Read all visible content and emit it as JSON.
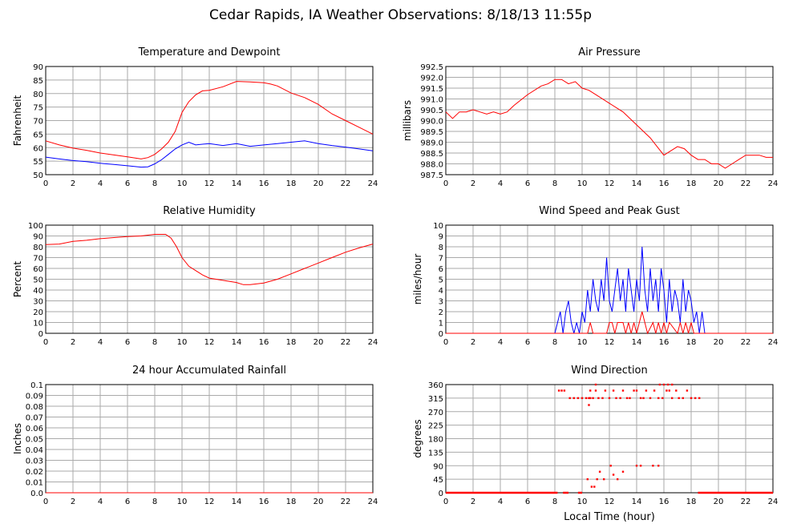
{
  "title": "Cedar Rapids, IA Weather Observations: 8/18/13 11:55p",
  "xlabel_bottom": "Local Time (hour)",
  "x_ticks": [
    0,
    2,
    4,
    6,
    8,
    10,
    12,
    14,
    16,
    18,
    20,
    22,
    24
  ],
  "colors": {
    "red": "#ff0000",
    "blue": "#0000ff",
    "grid": "#aaaaaa",
    "axis": "#000000"
  },
  "chart_data": [
    {
      "id": "temp",
      "type": "line",
      "title": "Temperature and Dewpoint",
      "ylabel": "Fahrenheit",
      "xlim": [
        0,
        24
      ],
      "ylim": [
        50,
        90
      ],
      "y_ticks": [
        50,
        55,
        60,
        65,
        70,
        75,
        80,
        85,
        90
      ],
      "y_tick_labels": [
        "50",
        "55",
        "60",
        "65",
        "70",
        "75",
        "80",
        "85",
        "90"
      ],
      "grid": true,
      "series": [
        {
          "color": "#ff0000",
          "x": [
            0,
            1,
            2,
            3,
            4,
            5,
            6,
            7,
            7.5,
            8,
            8.5,
            9,
            9.5,
            10,
            10.5,
            11,
            11.5,
            12,
            13,
            14,
            15,
            16,
            16.5,
            17,
            18,
            19,
            20,
            21,
            22,
            23,
            24
          ],
          "y": [
            62.5,
            61,
            59.8,
            59,
            58,
            57.3,
            56.6,
            55.8,
            56.3,
            57.5,
            59.5,
            62,
            66,
            73,
            77,
            79.5,
            81,
            81.2,
            82.5,
            84.5,
            84.3,
            84,
            83.5,
            82.8,
            80.2,
            78.5,
            76,
            72.5,
            70,
            67.5,
            65
          ]
        },
        {
          "color": "#0000ff",
          "x": [
            0,
            1,
            2,
            3,
            4,
            5,
            6,
            7,
            7.5,
            8,
            8.5,
            9,
            9.5,
            10,
            10.5,
            11,
            12,
            13,
            14,
            15,
            16,
            17,
            18,
            19,
            20,
            21,
            22,
            23,
            24
          ],
          "y": [
            56.5,
            55.8,
            55.2,
            54.8,
            54.2,
            53.8,
            53.3,
            52.8,
            52.9,
            54,
            55.5,
            57.5,
            59.5,
            61,
            62,
            61,
            61.5,
            60.8,
            61.5,
            60.5,
            61,
            61.5,
            62,
            62.5,
            61.5,
            60.8,
            60.2,
            59.5,
            58.8
          ]
        }
      ]
    },
    {
      "id": "pressure",
      "type": "line",
      "title": "Air Pressure",
      "ylabel": "millibars",
      "xlim": [
        0,
        24
      ],
      "ylim": [
        987.5,
        992.5
      ],
      "y_ticks": [
        987.5,
        988.0,
        988.5,
        989.0,
        989.5,
        990.0,
        990.5,
        991.0,
        991.5,
        992.0,
        992.5
      ],
      "y_tick_labels": [
        "987.5",
        "988.0",
        "988.5",
        "989.0",
        "989.5",
        "990.0",
        "990.5",
        "991.0",
        "991.5",
        "992.0",
        "992.5"
      ],
      "grid": true,
      "series": [
        {
          "color": "#ff0000",
          "x": [
            0,
            0.5,
            1,
            1.5,
            2,
            2.5,
            3,
            3.5,
            4,
            4.5,
            5,
            6,
            7,
            7.5,
            8,
            8.5,
            9,
            9.5,
            10,
            10.5,
            11,
            12,
            13,
            14,
            15,
            15.5,
            16,
            16.5,
            17,
            17.5,
            18,
            18.5,
            19,
            19.5,
            20,
            20.5,
            21,
            21.5,
            22,
            22.5,
            23,
            23.5,
            24
          ],
          "y": [
            990.4,
            990.1,
            990.4,
            990.4,
            990.5,
            990.4,
            990.3,
            990.4,
            990.3,
            990.4,
            990.7,
            991.2,
            991.6,
            991.7,
            991.9,
            991.9,
            991.7,
            991.8,
            991.5,
            991.4,
            991.2,
            990.8,
            990.4,
            989.8,
            989.2,
            988.8,
            988.4,
            988.6,
            988.8,
            988.7,
            988.4,
            988.2,
            988.2,
            988.0,
            988.0,
            987.8,
            988.0,
            988.2,
            988.4,
            988.4,
            988.4,
            988.3,
            988.3
          ]
        }
      ]
    },
    {
      "id": "rh",
      "type": "line",
      "title": "Relative Humidity",
      "ylabel": "Percent",
      "xlim": [
        0,
        24
      ],
      "ylim": [
        0,
        100
      ],
      "y_ticks": [
        0,
        10,
        20,
        30,
        40,
        50,
        60,
        70,
        80,
        90,
        100
      ],
      "y_tick_labels": [
        "0",
        "10",
        "20",
        "30",
        "40",
        "50",
        "60",
        "70",
        "80",
        "90",
        "100"
      ],
      "grid": true,
      "series": [
        {
          "color": "#ff0000",
          "x": [
            0,
            1,
            2,
            3,
            4,
            5,
            6,
            7,
            8,
            8.8,
            9.2,
            9.6,
            10,
            10.5,
            11,
            11.5,
            12,
            13,
            14,
            14.5,
            15,
            16,
            17,
            18,
            19,
            20,
            21,
            22,
            23,
            24
          ],
          "y": [
            82,
            82.5,
            85,
            86,
            87.5,
            88.5,
            89.5,
            90,
            91.5,
            91.5,
            88,
            80,
            70,
            62,
            58,
            54,
            51,
            49,
            47,
            45,
            45,
            46.5,
            50,
            55,
            60,
            65,
            70,
            75,
            79,
            82.5
          ]
        }
      ]
    },
    {
      "id": "wind",
      "type": "line",
      "title": "Wind Speed and Peak Gust",
      "ylabel": "miles/hour",
      "xlim": [
        0,
        24
      ],
      "ylim": [
        0,
        10
      ],
      "y_ticks": [
        0,
        1,
        2,
        3,
        4,
        5,
        6,
        7,
        8,
        9,
        10
      ],
      "y_tick_labels": [
        "0",
        "1",
        "2",
        "3",
        "4",
        "5",
        "6",
        "7",
        "8",
        "9",
        "10"
      ],
      "grid": true,
      "series": [
        {
          "color": "#0000ff",
          "x": [
            0,
            8.0,
            8.2,
            8.4,
            8.6,
            8.8,
            9.0,
            9.2,
            9.4,
            9.6,
            9.8,
            10.0,
            10.2,
            10.4,
            10.6,
            10.8,
            11.0,
            11.2,
            11.4,
            11.6,
            11.8,
            12.0,
            12.2,
            12.4,
            12.6,
            12.8,
            13.0,
            13.2,
            13.4,
            13.6,
            13.8,
            14.0,
            14.2,
            14.4,
            14.6,
            14.8,
            15.0,
            15.2,
            15.4,
            15.6,
            15.8,
            16.0,
            16.2,
            16.4,
            16.6,
            16.8,
            17.0,
            17.2,
            17.4,
            17.6,
            17.8,
            18.0,
            18.2,
            18.4,
            18.6,
            18.8,
            19.0,
            24
          ],
          "y": [
            0,
            0,
            1,
            2,
            0,
            2,
            3,
            1,
            0,
            1,
            0,
            2,
            1,
            4,
            2,
            5,
            3,
            2,
            5,
            3,
            7,
            3,
            2,
            4,
            6,
            3,
            5,
            2,
            6,
            4,
            2,
            5,
            3,
            8,
            4,
            2,
            6,
            3,
            5,
            2,
            6,
            4,
            1,
            5,
            2,
            4,
            3,
            1,
            5,
            2,
            4,
            3,
            1,
            2,
            0,
            2,
            0,
            0
          ]
        },
        {
          "color": "#ff0000",
          "x": [
            0,
            10.4,
            10.6,
            10.8,
            11.8,
            12.0,
            12.2,
            12.4,
            12.6,
            12.8,
            13.0,
            13.2,
            13.4,
            13.6,
            13.8,
            14.0,
            14.2,
            14.4,
            14.6,
            14.8,
            15.2,
            15.4,
            15.6,
            15.8,
            16.0,
            16.2,
            16.4,
            17.0,
            17.2,
            17.4,
            17.6,
            17.8,
            18.0,
            18.2,
            24
          ],
          "y": [
            0,
            0,
            1,
            0,
            0,
            1,
            1,
            0,
            1,
            1,
            1,
            0,
            1,
            0,
            1,
            0,
            1,
            2,
            1,
            0,
            1,
            0,
            1,
            0,
            1,
            0,
            1,
            0,
            1,
            0,
            1,
            0,
            1,
            0,
            0
          ]
        }
      ]
    },
    {
      "id": "rain",
      "type": "line",
      "title": "24 hour Accumulated Rainfall",
      "ylabel": "Inches",
      "xlim": [
        0,
        24
      ],
      "ylim": [
        0,
        0.1
      ],
      "y_ticks": [
        0,
        0.01,
        0.02,
        0.03,
        0.04,
        0.05,
        0.06,
        0.07,
        0.08,
        0.09,
        0.1
      ],
      "y_tick_labels": [
        "0.0",
        "0.01",
        "0.02",
        "0.03",
        "0.04",
        "0.05",
        "0.06",
        "0.07",
        "0.08",
        "0.09",
        "0.1"
      ],
      "grid": true,
      "series": [
        {
          "color": "#ff0000",
          "x": [
            0,
            24
          ],
          "y": [
            0,
            0
          ]
        }
      ]
    },
    {
      "id": "winddir",
      "type": "scatter",
      "title": "Wind Direction",
      "ylabel": "degrees",
      "xlabel": "Local Time (hour)",
      "xlim": [
        0,
        24
      ],
      "ylim": [
        0,
        360
      ],
      "y_ticks": [
        0,
        45,
        90,
        135,
        180,
        225,
        270,
        315,
        360
      ],
      "y_tick_labels": [
        "0",
        "45",
        "90",
        "135",
        "180",
        "225",
        "270",
        "315",
        "360"
      ],
      "grid": true,
      "series": [
        {
          "color": "#ff0000",
          "x": [
            8.3,
            8.5,
            8.7,
            9.1,
            9.4,
            9.7,
            10.0,
            10.3,
            10.5,
            10.6,
            10.8,
            11.0,
            11.2,
            11.5,
            11.7,
            12.0,
            12.3,
            12.5,
            12.8,
            13.0,
            13.3,
            13.5,
            13.8,
            14.0,
            14.3,
            14.5,
            14.7,
            15.0,
            15.3,
            15.6,
            15.9,
            16.2,
            16.4,
            16.6,
            16.9,
            17.1,
            17.4,
            17.7,
            18.0,
            18.3,
            18.6,
            10.4,
            10.7,
            10.9,
            11.1,
            11.3,
            11.6,
            12.1,
            12.3,
            12.6,
            13.0,
            14.0,
            14.3,
            15.2,
            15.6,
            10.5,
            11.0,
            15.7,
            16.0,
            16.3,
            16.6,
            10.6
          ],
          "y": [
            340,
            340,
            340,
            315,
            315,
            315,
            315,
            315,
            315,
            340,
            315,
            340,
            315,
            315,
            340,
            315,
            340,
            315,
            315,
            340,
            315,
            315,
            340,
            340,
            315,
            315,
            340,
            315,
            340,
            315,
            315,
            340,
            340,
            315,
            340,
            315,
            315,
            340,
            315,
            315,
            315,
            45,
            20,
            20,
            45,
            70,
            45,
            90,
            60,
            45,
            70,
            90,
            90,
            90,
            90,
            292,
            360,
            360,
            360,
            360,
            360,
            315
          ]
        }
      ],
      "zero_runs": [
        [
          0,
          8.2
        ],
        [
          8.6,
          9.0
        ],
        [
          9.7,
          10.0
        ],
        [
          18.5,
          24
        ]
      ]
    }
  ]
}
